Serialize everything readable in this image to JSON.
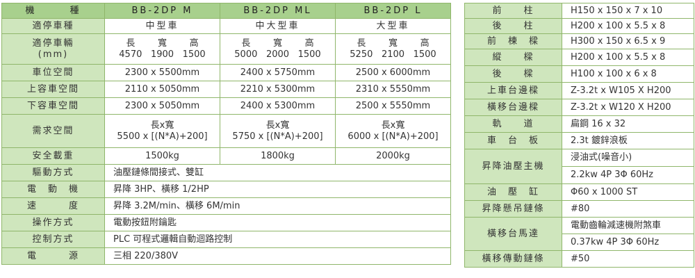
{
  "left_table": {
    "header": {
      "label": "機　　　種",
      "models": [
        "BB-2DP M",
        "BB-2DP ML",
        "BB-2DP L"
      ]
    },
    "type_row": {
      "label": "適停車種",
      "values": [
        "中型車",
        "中大型車",
        "大型車"
      ]
    },
    "dims_row": {
      "label_line1": "適停車輛",
      "label_line2": "(mm)",
      "dim_labels": [
        "長",
        "寬",
        "高"
      ],
      "values": [
        [
          "4570",
          "1900",
          "1500"
        ],
        [
          "5000",
          "2000",
          "1500"
        ],
        [
          "5250",
          "2100",
          "1500"
        ]
      ]
    },
    "space_rows": [
      {
        "label": "車位空間",
        "values": [
          "2300 x 5500mm",
          "2400 x 5750mm",
          "2500 x 6000mm"
        ]
      },
      {
        "label": "上容車空間",
        "values": [
          "2110 x 5050mm",
          "2210 x 5300mm",
          "2310 x 5550mm"
        ]
      },
      {
        "label": "下容車空間",
        "values": [
          "2300 x 5050mm",
          "2400 x 5300mm",
          "2500 x 5550mm"
        ]
      }
    ],
    "demand_row": {
      "label": "需求空間",
      "line1": "長x寬",
      "values": [
        "5500 x [(N*A)+200]",
        "5750 x [(N*A)+200]",
        "6000 x [(N*A)+200]"
      ]
    },
    "load_row": {
      "label": "安全載重",
      "values": [
        "1500kg",
        "1800kg",
        "2000kg"
      ]
    },
    "spec_rows": [
      {
        "label": "驅動方式",
        "value": "油壓鏈條間接式、雙缸"
      },
      {
        "label": "電　動　機",
        "value": "昇降 3HP、橫移 1/2HP"
      },
      {
        "label": "速　　　度",
        "value": "昇降 3.2M/min、橫移 6M/min"
      },
      {
        "label": "操作方式",
        "value": "電動按鈕附鑰匙"
      },
      {
        "label": "控制方式",
        "value": "PLC 可程式邏輯自動迴路控制"
      },
      {
        "label": "電　　　源",
        "value": "三相  220/380V"
      }
    ]
  },
  "right_table": {
    "rows": [
      {
        "label": "前　　柱",
        "value": "H150 x 150 x 7 x 10"
      },
      {
        "label": "後　　柱",
        "value": "H200 x 100 x 5.5 x 8"
      },
      {
        "label": "前　棟　樑",
        "value": "H300 x 150 x 6.5 x 9"
      },
      {
        "label": "縱　　樑",
        "value": "H200 x 100 x 5.5 x 8"
      },
      {
        "label": "後　　樑",
        "value": "H100 x 100 x 6 x 8"
      },
      {
        "label": "上車台邊樑",
        "value": "Z-3.2t x W105 X H200"
      },
      {
        "label": "橫移台邊樑",
        "value": "Z-3.2t x W120 X H200"
      },
      {
        "label": "軌　　道",
        "value": "扁鋼 16 x 32"
      },
      {
        "label": "車　台　板",
        "value": "2.3t 鍍鋅浪板"
      }
    ],
    "hydraulic": {
      "label": "昇降油壓主機",
      "line1": "浸油式(噪音小)",
      "line2": "2.2kw  4P  3Φ  60Hz"
    },
    "cylinder": {
      "label": "油　壓　缸",
      "value": "Φ60 x 1000 ST"
    },
    "chain": {
      "label": "昇降懸吊鏈條",
      "value": "#80"
    },
    "motor": {
      "label": "橫移台馬達",
      "line1": "電動齒輪減速機附煞車",
      "line2": "0.37kw  4P  3Φ  60Hz"
    },
    "traverse_chain": {
      "label": "橫移傳動鏈條",
      "value": "#50"
    }
  }
}
